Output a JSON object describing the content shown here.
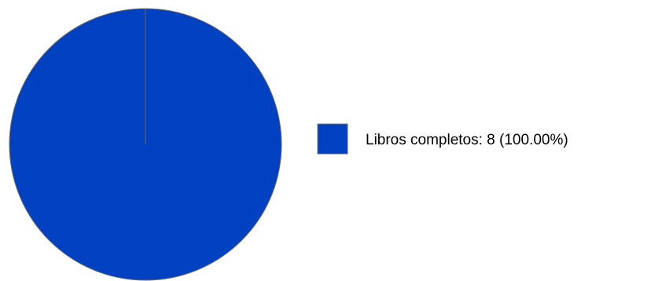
{
  "chart_data": {
    "type": "pie",
    "title": "",
    "categories": [
      "Libros completos"
    ],
    "values": [
      8
    ],
    "legend_labels": [
      "Libros completos: 8 (100.00%)"
    ],
    "colors": [
      "#0041c2"
    ],
    "legend_position": "right"
  }
}
